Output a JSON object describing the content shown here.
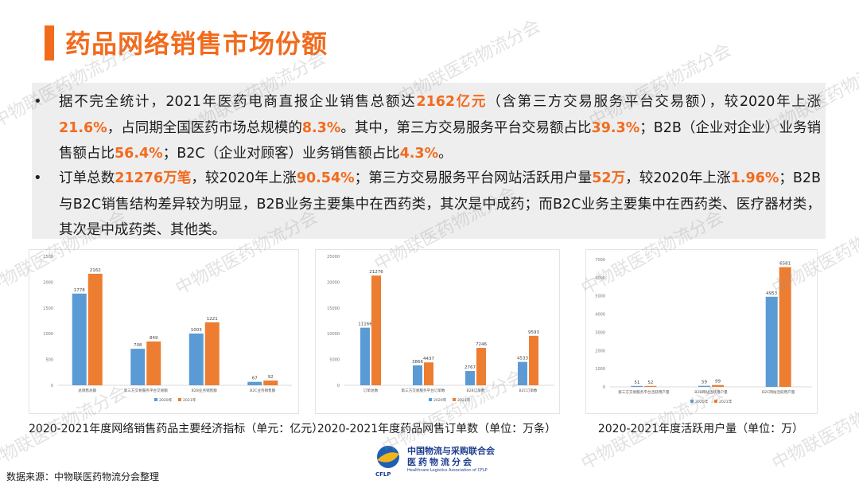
{
  "title": "药品网络销售市场份额",
  "bullets": [
    [
      {
        "t": "据不完全统计，2021年医药电商直报企业销售总额达",
        "h": false
      },
      {
        "t": "2162亿元",
        "h": true
      },
      {
        "t": "（含第三方交易服务平台交易额），较2020年上涨",
        "h": false
      },
      {
        "t": "21.6%",
        "h": true
      },
      {
        "t": "，占同期全国医药市场总规模的",
        "h": false
      },
      {
        "t": "8.3%",
        "h": true
      },
      {
        "t": "。其中，第三方交易服务平台交易额占比",
        "h": false
      },
      {
        "t": "39.3%",
        "h": true
      },
      {
        "t": "；B2B（企业对企业）业务销售额占比",
        "h": false
      },
      {
        "t": "56.4%",
        "h": true
      },
      {
        "t": "；B2C（企业对顾客）业务销售额占比",
        "h": false
      },
      {
        "t": "4.3%",
        "h": true
      },
      {
        "t": "。",
        "h": false
      }
    ],
    [
      {
        "t": "订单总数",
        "h": false
      },
      {
        "t": "21276万笔",
        "h": true
      },
      {
        "t": "，较2020年上涨",
        "h": false
      },
      {
        "t": "90.54%",
        "h": true
      },
      {
        "t": "；第三方交易服务平台网站活跃用户量",
        "h": false
      },
      {
        "t": "52万",
        "h": true
      },
      {
        "t": "，较2020年上涨",
        "h": false
      },
      {
        "t": "1.96%",
        "h": true
      },
      {
        "t": "；B2B与B2C销售结构差异较为明显，B2B业务主要集中在西药类，其次是中成药；而B2C业务主要集中在西药类、医疗器材类，其次是中成药类、其他类。",
        "h": false
      }
    ]
  ],
  "bullet_symbol": "•",
  "chart_data": [
    {
      "type": "bar",
      "categories": [
        "总销售总额",
        "第三方交易服务平台交易额",
        "B2B业务销售额",
        "B2C业务销售额"
      ],
      "series": [
        {
          "name": "2020年",
          "values": [
            1778,
            708,
            1003,
            67
          ]
        },
        {
          "name": "2021年",
          "values": [
            2162,
            849,
            1221,
            92
          ]
        }
      ],
      "ylim": [
        0,
        2500
      ],
      "yticks": [
        0,
        500,
        1000,
        1500,
        2000,
        2500
      ],
      "legend": "bottom",
      "caption": "2020-2021年度网络销售药品主要经济指标（单元：亿元）"
    },
    {
      "type": "bar",
      "categories": [
        "订单总数",
        "第三方交易服务平台订单数",
        "B2B订单数",
        "B2C订单数"
      ],
      "series": [
        {
          "name": "2020年",
          "values": [
            11166,
            3866,
            2767,
            4533
          ]
        },
        {
          "name": "2021年",
          "values": [
            21276,
            4437,
            7246,
            9593
          ]
        }
      ],
      "ylim": [
        0,
        25000
      ],
      "yticks": [
        0,
        5000,
        10000,
        15000,
        20000,
        25000
      ],
      "legend": "bottom",
      "caption": "2020-2021年度药品网售订单数（单位：万条）"
    },
    {
      "type": "bar",
      "categories": [
        "第三方交易服务平台活跃用户量",
        "B2B网站活跃用户量",
        "B2C网站活跃用户量"
      ],
      "series": [
        {
          "name": "2020年",
          "values": [
            51,
            59,
            4953
          ]
        },
        {
          "name": "2021年",
          "values": [
            52,
            99,
            6581
          ]
        }
      ],
      "ylim": [
        0,
        7000
      ],
      "yticks": [
        0,
        1000,
        2000,
        3000,
        4000,
        5000,
        6000,
        7000
      ],
      "legend": "bottom",
      "caption": "2020-2021年度活跃用户量（单位：万）"
    }
  ],
  "colors": {
    "c2020": "#5b9bd5",
    "c2021": "#ed7d31",
    "accent": "#f26b1d"
  },
  "source": "数据来源：中物联医药物流分会整理",
  "logo": {
    "cn_line1": "中国物流与采购联合会",
    "cn_line2": "医药物流分会",
    "en_line": "Healthcare Logistics Association of CFLP",
    "abbr": "CFLP"
  },
  "watermark": "中物联医药物流分会"
}
